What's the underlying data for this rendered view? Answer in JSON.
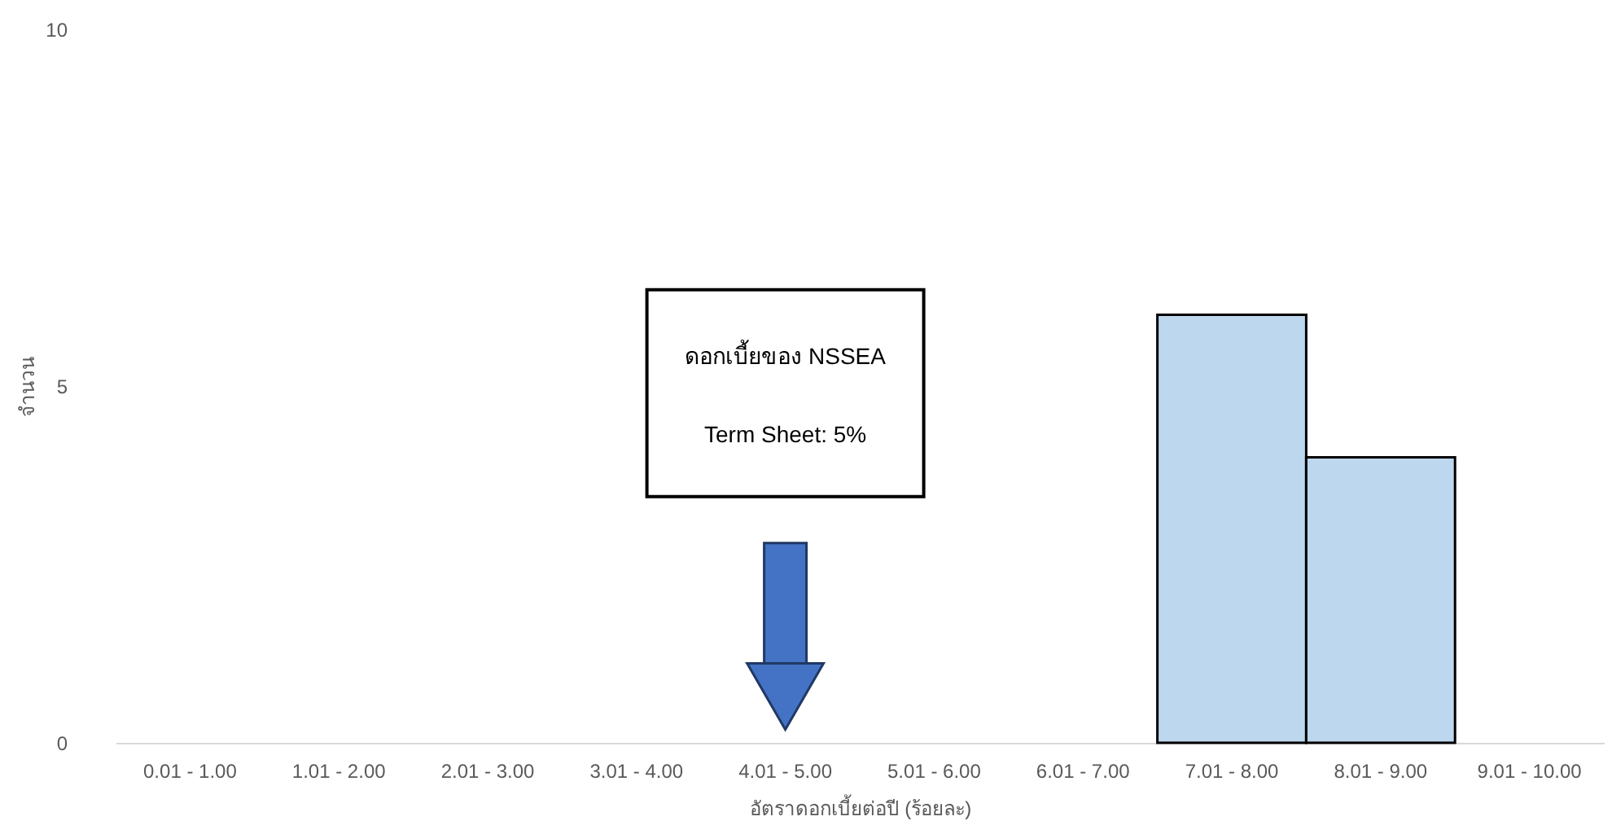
{
  "chart_data": {
    "type": "bar",
    "xlabel": "อัตราดอกเบี้ยต่อปี (ร้อยละ)",
    "ylabel": "จำนวน",
    "categories": [
      "0.01 - 1.00",
      "1.01 - 2.00",
      "2.01 - 3.00",
      "3.01 - 4.00",
      "4.01 - 5.00",
      "5.01 - 6.00",
      "6.01 - 7.00",
      "7.01 - 8.00",
      "8.01 - 9.00",
      "9.01 - 10.00"
    ],
    "values": [
      0,
      0,
      0,
      0,
      0,
      0,
      0,
      6,
      4,
      0
    ],
    "color": "#bdd7ee",
    "ylim": [
      0,
      10
    ],
    "yticks": [
      0,
      5,
      10
    ],
    "grid": false,
    "annotations": [
      "ดอกเบี้ยของ NSSEA",
      "Term Sheet: 5%"
    ]
  }
}
